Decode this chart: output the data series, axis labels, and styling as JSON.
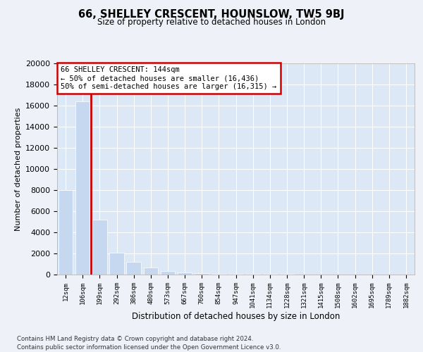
{
  "title": "66, SHELLEY CRESCENT, HOUNSLOW, TW5 9BJ",
  "subtitle": "Size of property relative to detached houses in London",
  "xlabel": "Distribution of detached houses by size in London",
  "ylabel": "Number of detached properties",
  "categories": [
    "12sqm",
    "106sqm",
    "199sqm",
    "292sqm",
    "386sqm",
    "480sqm",
    "573sqm",
    "667sqm",
    "760sqm",
    "854sqm",
    "947sqm",
    "1041sqm",
    "1134sqm",
    "1228sqm",
    "1321sqm",
    "1415sqm",
    "1508sqm",
    "1602sqm",
    "1695sqm",
    "1789sqm",
    "1882sqm"
  ],
  "values": [
    8000,
    16400,
    5200,
    2100,
    1200,
    700,
    350,
    200,
    130,
    90,
    70,
    55,
    45,
    35,
    28,
    22,
    18,
    14,
    11,
    9,
    7
  ],
  "bar_color": "#c5d8f0",
  "vline_color": "#cc0000",
  "vline_x": 1.5,
  "annotation_box_text": "66 SHELLEY CRESCENT: 144sqm\n← 50% of detached houses are smaller (16,436)\n50% of semi-detached houses are larger (16,315) →",
  "annotation_box_color": "#cc0000",
  "background_color": "#eef2f8",
  "plot_bg_color": "#dce8f5",
  "footer_line1": "Contains HM Land Registry data © Crown copyright and database right 2024.",
  "footer_line2": "Contains public sector information licensed under the Open Government Licence v3.0.",
  "ylim": [
    0,
    20000
  ],
  "yticks": [
    0,
    2000,
    4000,
    6000,
    8000,
    10000,
    12000,
    14000,
    16000,
    18000,
    20000
  ]
}
